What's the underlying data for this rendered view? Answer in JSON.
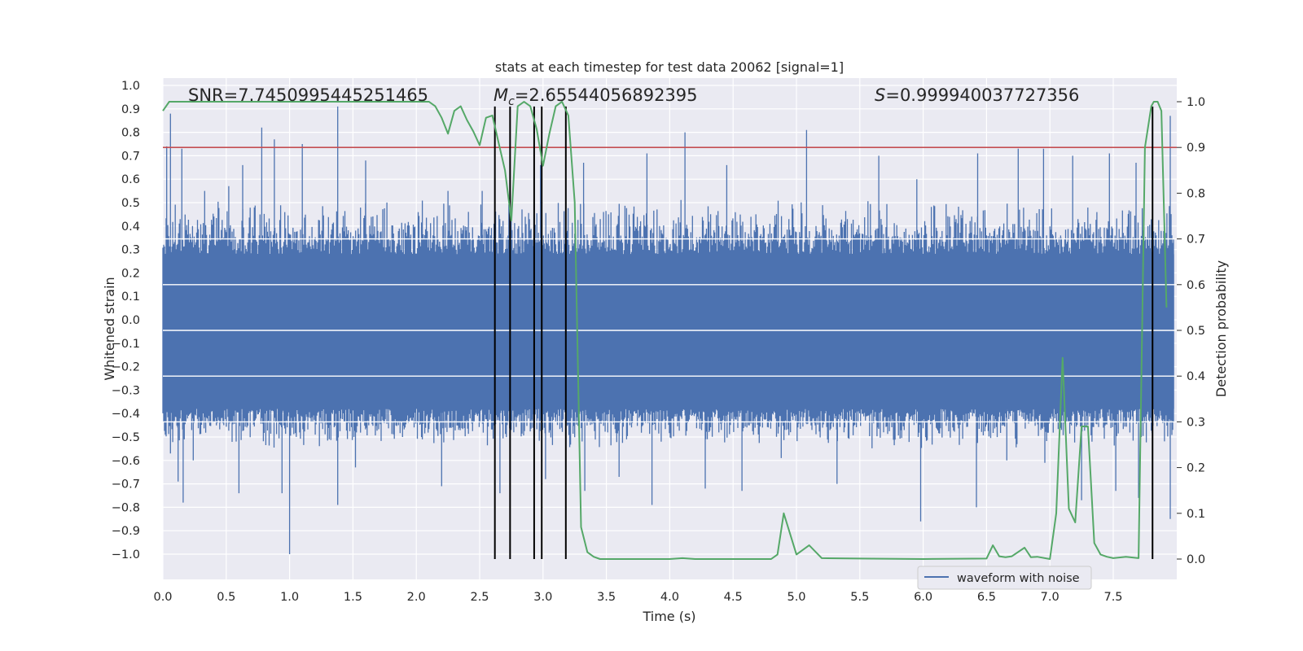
{
  "chart_data": {
    "type": "line",
    "title": "stats at each timestep for test data 20062 [signal=1]",
    "xlabel": "Time (s)",
    "ylabel": "Whitened strain",
    "y2label": "Detection probability",
    "xlim": [
      0.0,
      8.0
    ],
    "ylim": [
      -1.09,
      1.01
    ],
    "y2lim": [
      -0.05,
      1.05
    ],
    "xticks": [
      "0.0",
      "0.5",
      "1.0",
      "1.5",
      "2.0",
      "2.5",
      "3.0",
      "3.5",
      "4.0",
      "4.5",
      "5.0",
      "5.5",
      "6.0",
      "6.5",
      "7.0",
      "7.5"
    ],
    "yticks": [
      "1.0",
      "0.9",
      "0.8",
      "0.7",
      "0.6",
      "0.5",
      "0.4",
      "0.3",
      "0.2",
      "0.1",
      "0.0",
      "−0.1",
      "−0.2",
      "−0.3",
      "−0.4",
      "−0.5",
      "−0.6",
      "−0.7",
      "−0.8",
      "−0.9",
      "−1.0"
    ],
    "y2ticks": [
      "1.0",
      "0.9",
      "0.8",
      "0.7",
      "0.6",
      "0.5",
      "0.4",
      "0.3",
      "0.2",
      "0.1",
      "0.0"
    ],
    "grid": true,
    "legend": {
      "placement": "lower-right",
      "entries": [
        "waveform with noise"
      ]
    },
    "annotations": {
      "snr": "SNR=7.7450995445251465",
      "mc_symbol": "M",
      "mc_sub": "c",
      "mc_value": "=2.65544056892395",
      "s_symbol": "S",
      "s_value": "=0.999940037727356"
    },
    "threshold_probability": 0.9,
    "waveform": {
      "name": "waveform with noise",
      "color": "#4c72b0",
      "envelope_top": 0.28,
      "envelope_bottom": -0.38,
      "dense_top": 0.52,
      "dense_bottom": -0.55,
      "peaks": [
        [
          0.03,
          0.74
        ],
        [
          0.06,
          0.88
        ],
        [
          0.15,
          0.73
        ],
        [
          0.33,
          0.55
        ],
        [
          0.52,
          0.57
        ],
        [
          0.63,
          0.66
        ],
        [
          0.78,
          0.82
        ],
        [
          0.88,
          0.77
        ],
        [
          1.1,
          0.75
        ],
        [
          1.38,
          0.91
        ],
        [
          1.6,
          0.68
        ],
        [
          2.25,
          0.55
        ],
        [
          2.52,
          0.55
        ],
        [
          2.98,
          0.66
        ],
        [
          3.32,
          0.67
        ],
        [
          3.82,
          0.71
        ],
        [
          4.12,
          0.8
        ],
        [
          4.45,
          0.66
        ],
        [
          5.08,
          0.81
        ],
        [
          5.65,
          0.7
        ],
        [
          5.95,
          0.6
        ],
        [
          6.43,
          0.71
        ],
        [
          6.75,
          0.73
        ],
        [
          6.95,
          0.73
        ],
        [
          7.18,
          0.7
        ],
        [
          7.47,
          0.71
        ],
        [
          7.68,
          0.67
        ],
        [
          7.95,
          0.87
        ]
      ],
      "troughs": [
        [
          0.06,
          -0.57
        ],
        [
          0.12,
          -0.69
        ],
        [
          0.16,
          -0.78
        ],
        [
          0.24,
          -0.6
        ],
        [
          0.6,
          -0.74
        ],
        [
          0.94,
          -0.74
        ],
        [
          1.0,
          -1.0
        ],
        [
          1.38,
          -0.79
        ],
        [
          1.52,
          -0.63
        ],
        [
          2.2,
          -0.71
        ],
        [
          2.66,
          -0.74
        ],
        [
          3.02,
          -0.68
        ],
        [
          3.33,
          -0.73
        ],
        [
          3.6,
          -0.67
        ],
        [
          3.86,
          -0.79
        ],
        [
          4.28,
          -0.72
        ],
        [
          4.57,
          -0.73
        ],
        [
          4.88,
          -0.59
        ],
        [
          5.32,
          -0.7
        ],
        [
          5.98,
          -0.86
        ],
        [
          6.42,
          -0.8
        ],
        [
          6.66,
          -0.6
        ],
        [
          6.96,
          -0.61
        ],
        [
          7.25,
          -0.77
        ],
        [
          7.52,
          -0.73
        ],
        [
          7.7,
          -0.76
        ],
        [
          7.95,
          -0.85
        ]
      ]
    },
    "series": [
      {
        "name": "",
        "color": "#55a868",
        "x": [
          0.0,
          0.05,
          0.1,
          1.0,
          1.5,
          2.1,
          2.15,
          2.2,
          2.25,
          2.3,
          2.35,
          2.4,
          2.45,
          2.5,
          2.55,
          2.6,
          2.65,
          2.7,
          2.75,
          2.8,
          2.85,
          2.9,
          2.95,
          3.0,
          3.05,
          3.1,
          3.15,
          3.2,
          3.25,
          3.3,
          3.35,
          3.4,
          3.45,
          3.5,
          4.0,
          4.1,
          4.2,
          4.5,
          4.8,
          4.85,
          4.9,
          5.0,
          5.1,
          5.2,
          5.5,
          6.0,
          6.5,
          6.55,
          6.6,
          6.65,
          6.7,
          6.8,
          6.85,
          6.9,
          7.0,
          7.05,
          7.1,
          7.15,
          7.2,
          7.25,
          7.3,
          7.35,
          7.4,
          7.45,
          7.5,
          7.6,
          7.7,
          7.75,
          7.8,
          7.82,
          7.85,
          7.88,
          7.92
        ],
        "values": [
          0.98,
          1.0,
          1.0,
          1.0,
          1.0,
          1.0,
          0.99,
          0.965,
          0.93,
          0.98,
          0.99,
          0.96,
          0.935,
          0.905,
          0.965,
          0.97,
          0.91,
          0.85,
          0.74,
          0.99,
          1.0,
          0.99,
          0.94,
          0.86,
          0.93,
          0.99,
          1.0,
          0.97,
          0.78,
          0.07,
          0.015,
          0.005,
          0.0,
          0.0,
          0.0,
          0.002,
          0.0,
          0.0,
          0.0,
          0.01,
          0.1,
          0.01,
          0.03,
          0.002,
          0.001,
          0.0,
          0.001,
          0.03,
          0.006,
          0.004,
          0.006,
          0.025,
          0.004,
          0.005,
          0.0,
          0.1,
          0.44,
          0.11,
          0.08,
          0.29,
          0.29,
          0.035,
          0.01,
          0.005,
          0.002,
          0.005,
          0.002,
          0.9,
          0.99,
          1.0,
          1.0,
          0.98,
          0.55
        ]
      }
    ],
    "vertical_markers": {
      "color": "#000000",
      "positions": [
        2.62,
        2.74,
        2.93,
        2.99,
        3.18,
        7.81
      ],
      "tops": [
        0.91,
        0.91,
        0.91,
        0.91,
        0.91,
        0.91
      ]
    },
    "colors": {
      "background": "#eaeaf2",
      "grid": "#ffffff",
      "threshold": "#c44e52",
      "text": "#262626"
    }
  }
}
